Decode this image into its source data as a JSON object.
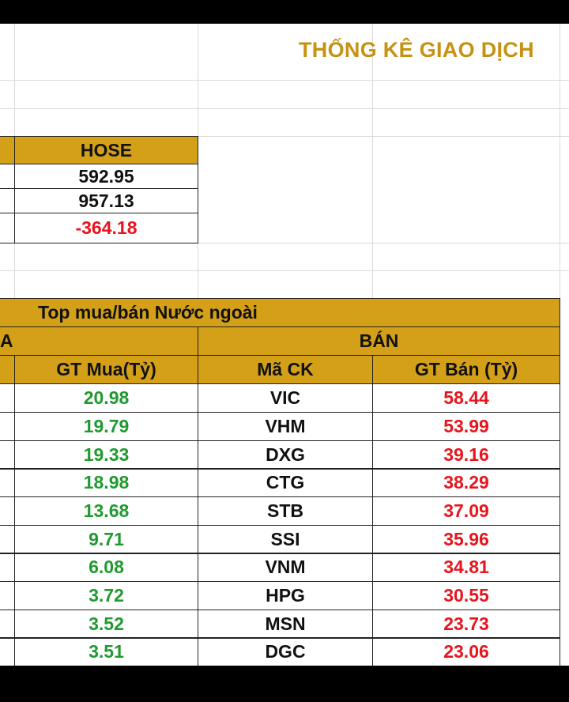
{
  "title": "THỐNG KÊ GIAO DỊCH",
  "summary": {
    "header": "HOSE",
    "values": [
      "592.95",
      "957.13",
      "-364.18"
    ]
  },
  "top_table": {
    "title": "Top mua/bán Nước ngoài",
    "buy_group_label": "A",
    "sell_group_label": "BÁN",
    "buy_value_header": "GT Mua(Tỷ)",
    "sell_code_header": "Mã CK",
    "sell_value_header": "GT Bán (Tỷ)",
    "rows": [
      {
        "buy_value": "20.98",
        "sell_code": "VIC",
        "sell_value": "58.44"
      },
      {
        "buy_value": "19.79",
        "sell_code": "VHM",
        "sell_value": "53.99"
      },
      {
        "buy_value": "19.33",
        "sell_code": "DXG",
        "sell_value": "39.16"
      },
      {
        "buy_value": "18.98",
        "sell_code": "CTG",
        "sell_value": "38.29"
      },
      {
        "buy_value": "13.68",
        "sell_code": "STB",
        "sell_value": "37.09"
      },
      {
        "buy_value": "9.71",
        "sell_code": "SSI",
        "sell_value": "35.96"
      },
      {
        "buy_value": "6.08",
        "sell_code": "VNM",
        "sell_value": "34.81"
      },
      {
        "buy_value": "3.72",
        "sell_code": "HPG",
        "sell_value": "30.55"
      },
      {
        "buy_value": "3.52",
        "sell_code": "MSN",
        "sell_value": "23.73"
      },
      {
        "buy_value": "3.51",
        "sell_code": "DGC",
        "sell_value": "23.06"
      }
    ]
  },
  "colors": {
    "header_bg": "#d4a017",
    "title": "#c69214",
    "buy": "#1f9a2f",
    "sell": "#e8141c"
  }
}
